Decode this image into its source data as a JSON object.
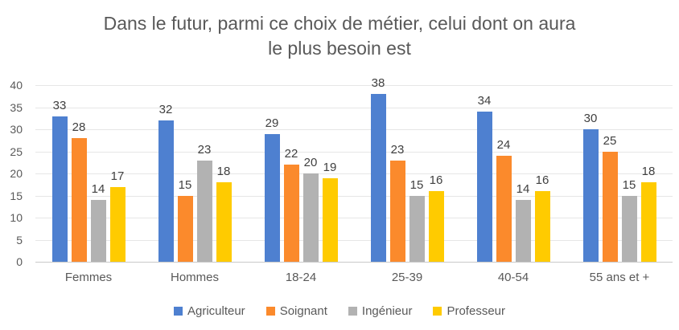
{
  "chart_data": {
    "type": "bar",
    "title": "Dans le futur, parmi ce choix de métier, celui dont on aura le plus besoin est",
    "title_lines": [
      "Dans le futur, parmi ce choix de métier, celui dont on aura",
      "le plus besoin est"
    ],
    "categories": [
      "Femmes",
      "Hommes",
      "18-24",
      "25-39",
      "40-54",
      "55 ans et +"
    ],
    "series": [
      {
        "name": "Agriculteur",
        "color": "#4E80D0",
        "values": [
          33,
          32,
          29,
          38,
          34,
          30
        ]
      },
      {
        "name": "Soignant",
        "color": "#FB8A2C",
        "values": [
          28,
          15,
          22,
          23,
          24,
          25
        ]
      },
      {
        "name": "Ingénieur",
        "color": "#B2B2B2",
        "values": [
          14,
          23,
          20,
          15,
          14,
          15
        ]
      },
      {
        "name": "Professeur",
        "color": "#FFCB00",
        "values": [
          17,
          18,
          19,
          16,
          16,
          18
        ]
      }
    ],
    "y_axis": {
      "min": 0,
      "max": 40,
      "step": 5,
      "ticks": [
        0,
        5,
        10,
        15,
        20,
        25,
        30,
        35,
        40
      ]
    },
    "grid": true,
    "data_labels": true,
    "legend_position": "bottom",
    "palette": {
      "title_color": "#595959",
      "axis_label_color": "#595959",
      "value_label_color": "#404040",
      "gridline_color": "#E6E6E6",
      "axis_line_color": "#C9C9C9",
      "background": "#FFFFFF"
    }
  }
}
